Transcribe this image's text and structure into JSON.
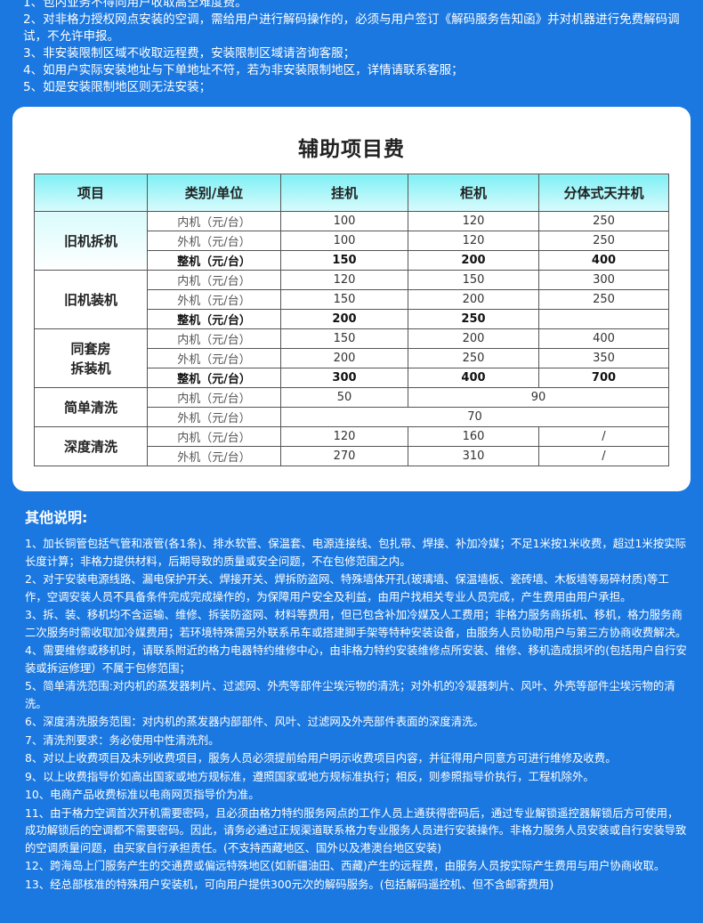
{
  "top_notes": [
    "1、包内业务不得向用户收取高空难度费。",
    "2、对非格力授权网点安装的空调，需给用户进行解码操作的，必须与用户签订《解码服务告知函》并对机器进行免费解码调试，不允许申报。",
    "3、非安装限制区域不收取远程费，安装限制区域请咨询客服；",
    "4、如用户实际安装地址与下单地址不符，若为非安装限制地区，详情请联系客服；",
    "5、如是安装限制地区则无法安装；"
  ],
  "fee_table": {
    "title": "辅助项目费",
    "headers": [
      "项目",
      "类别/单位",
      "挂机",
      "柜机",
      "分体式天井机"
    ],
    "groups": [
      {
        "item": "旧机拆机",
        "rows": [
          {
            "unit": "内机（元/台）",
            "values": [
              "100",
              "120",
              "250"
            ]
          },
          {
            "unit": "外机（元/台）",
            "values": [
              "100",
              "120",
              "250"
            ]
          },
          {
            "unit": "整机（元/台）",
            "values": [
              "150",
              "200",
              "400"
            ],
            "bold": true
          }
        ]
      },
      {
        "item": "旧机装机",
        "rows": [
          {
            "unit": "内机（元/台）",
            "values": [
              "120",
              "150",
              "300"
            ]
          },
          {
            "unit": "外机（元/台）",
            "values": [
              "150",
              "200",
              "250"
            ]
          },
          {
            "unit": "整机（元/台）",
            "values": [
              "200",
              "250",
              ""
            ],
            "bold": true
          }
        ]
      },
      {
        "item": "同套房\n拆装机",
        "rows": [
          {
            "unit": "内机（元/台）",
            "values": [
              "150",
              "200",
              "400"
            ]
          },
          {
            "unit": "外机（元/台）",
            "values": [
              "200",
              "250",
              "350"
            ]
          },
          {
            "unit": "整机（元/台）",
            "values": [
              "300",
              "400",
              "700"
            ],
            "bold": true
          }
        ]
      },
      {
        "item": "简单清洗",
        "rows": [
          {
            "unit": "内机（元/台）",
            "values": [
              "50",
              "90"
            ],
            "spans": [
              1,
              2
            ]
          },
          {
            "unit": "外机（元/台）",
            "values": [
              "70"
            ],
            "spans": [
              3
            ]
          }
        ]
      },
      {
        "item": "深度清洗",
        "rows": [
          {
            "unit": "内机（元/台）",
            "values": [
              "120",
              "160",
              "/"
            ]
          },
          {
            "unit": "外机（元/台）",
            "values": [
              "270",
              "310",
              "/"
            ]
          }
        ]
      }
    ]
  },
  "other_notes": {
    "title": "其他说明:",
    "items": [
      "1、加长铜管包括气管和液管(各1条)、排水软管、保温套、电源连接线、包扎带、焊接、补加冷媒；不足1米按1米收费，超过1米按实际长度计算；非格力提供材料，后期导致的质量或安全问题，不在包修范围之内。",
      "2、对于安装电源线路、漏电保护开关、焊接开关、焊拆防盗网、特殊墙体开孔(玻璃墙、保温墙板、瓷砖墙、木板墙等易碎材质)等工作，空调安装人员不具备条件完成完成操作的，为保障用户安全及利益，由用户找相关专业人员完成，产生费用由用户承担。",
      "3、拆、装、移机均不含运输、维修、拆装防盗网、材料等费用，但已包含补加冷媒及人工费用；非格力服务商拆机、移机，格力服务商二次服务时需收取加冷媒费用；若环境特殊需另外联系吊车或搭建脚手架等特种安装设备，由服务人员协助用户与第三方协商收费解决。",
      "4、需要维修或移机时，请联系附近的格力电器特约维修中心，由非格力特约安装维修点所安装、维修、移机造成损坏的(包括用户自行安装或拆运修理）不属于包修范围；",
      "5、简单清洗范围:对内机的蒸发器刺片、过滤网、外壳等部件尘埃污物的清洗；对外机的冷凝器刺片、风叶、外壳等部件尘埃污物的清洗。",
      "6、深度清洗服务范围：对内机的蒸发器内部部件、风叶、过滤网及外壳部件表面的深度清洗。",
      "7、清洗剂要求：务必使用中性清洗剂。",
      "8、对以上收费项目及未列收费项目，服务人员必须提前给用户明示收费项目内容，并征得用户同意方可进行维修及收费。",
      "9、以上收费指导价如高出国家或地方规标准，遵照国家或地方规标准执行；相反，则参照指导价执行，工程机除外。",
      "10、电商产品收费标准以电商网页指导价为准。",
      "11、由于格力空调首次开机需要密码，且必须由格力特约服务网点的工作人员上通获得密码后，通过专业解锁遥控器解锁后方可使用，成功解锁后的空调都不需要密码。因此，请务必通过正规渠道联系格力专业服务人员进行安装操作。非格力服务人员安装或自行安装导致的空调质量问题，由买家自行承担责任。(不支持西藏地区、国外以及港澳台地区安装)",
      "12、跨海岛上门服务产生的交通费或偏远特殊地区(如新疆油田、西藏)产生的远程费，由服务人员按实际产生费用与用户协商收取。",
      "13、经总部核准的特殊用户安装机，可向用户提供300元次的解码服务。(包括解码遥控机、但不含邮寄费用)"
    ]
  },
  "colors": {
    "background": "#1b78e0",
    "header_gradient": "#7ff0f5"
  }
}
